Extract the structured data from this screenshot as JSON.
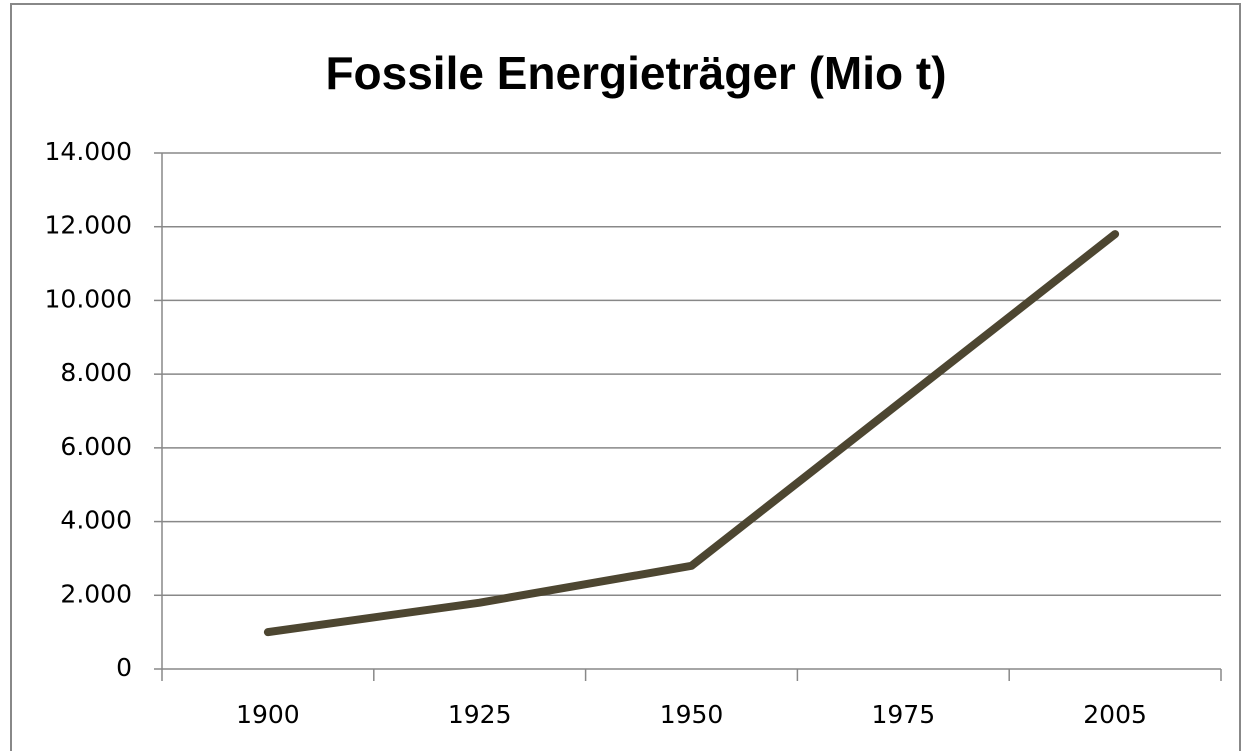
{
  "chart_data": {
    "type": "line",
    "title": "Fossile Energieträger (Mio t)",
    "categories": [
      "1900",
      "1925",
      "1950",
      "1975",
      "2005"
    ],
    "values": [
      1000,
      1800,
      2800,
      7300,
      11800
    ],
    "color": "#4d4631",
    "ylim": [
      0,
      14000
    ],
    "yticks": [
      0,
      {
        "value": 2000,
        "label": "2.000"
      },
      {
        "value": 4000,
        "label": "4.000"
      },
      {
        "value": 6000,
        "label": "6.000"
      },
      {
        "value": 8000,
        "label": "8.000"
      },
      {
        "value": 10000,
        "label": "10.000"
      },
      {
        "value": 12000,
        "label": "12.000"
      },
      {
        "value": 14000,
        "label": "14.000"
      }
    ],
    "grid": true
  }
}
